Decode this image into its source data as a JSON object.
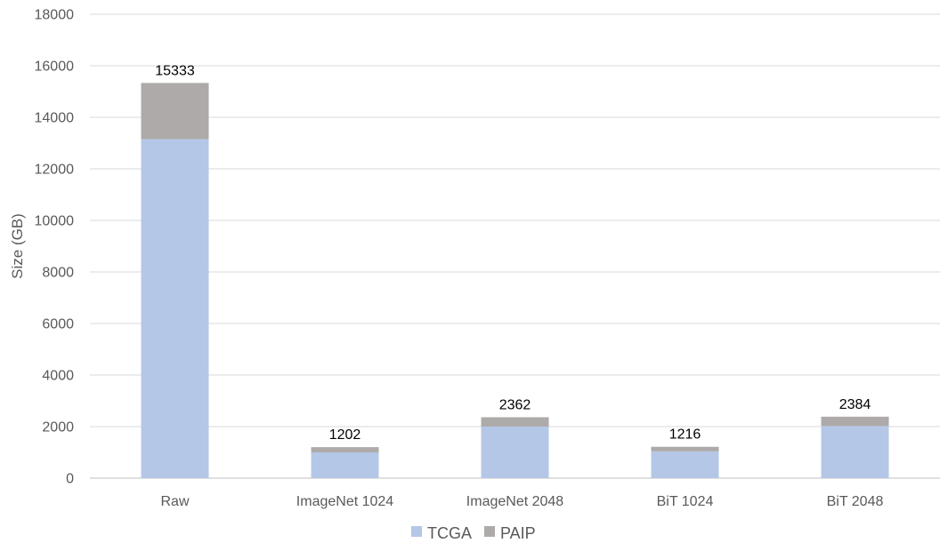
{
  "chart_data": {
    "type": "bar",
    "stacked": true,
    "categories": [
      "Raw",
      "ImageNet 1024",
      "ImageNet 2048",
      "BiT 1024",
      "BiT 2048"
    ],
    "series": [
      {
        "name": "TCGA",
        "values": [
          13150,
          1000,
          2000,
          1040,
          2020
        ],
        "color": "#b4c7e7"
      },
      {
        "name": "PAIP",
        "values": [
          2183,
          202,
          362,
          176,
          364
        ],
        "color": "#aeaaaa"
      }
    ],
    "totals": [
      "15333",
      "1202",
      "2362",
      "1216",
      "2384"
    ],
    "ylabel": "Size (GB)",
    "ylim": [
      0,
      18000
    ],
    "yticks": [
      "0",
      "2000",
      "4000",
      "6000",
      "8000",
      "10000",
      "12000",
      "14000",
      "16000",
      "18000"
    ],
    "grid": true,
    "legend": "bottom-center"
  }
}
